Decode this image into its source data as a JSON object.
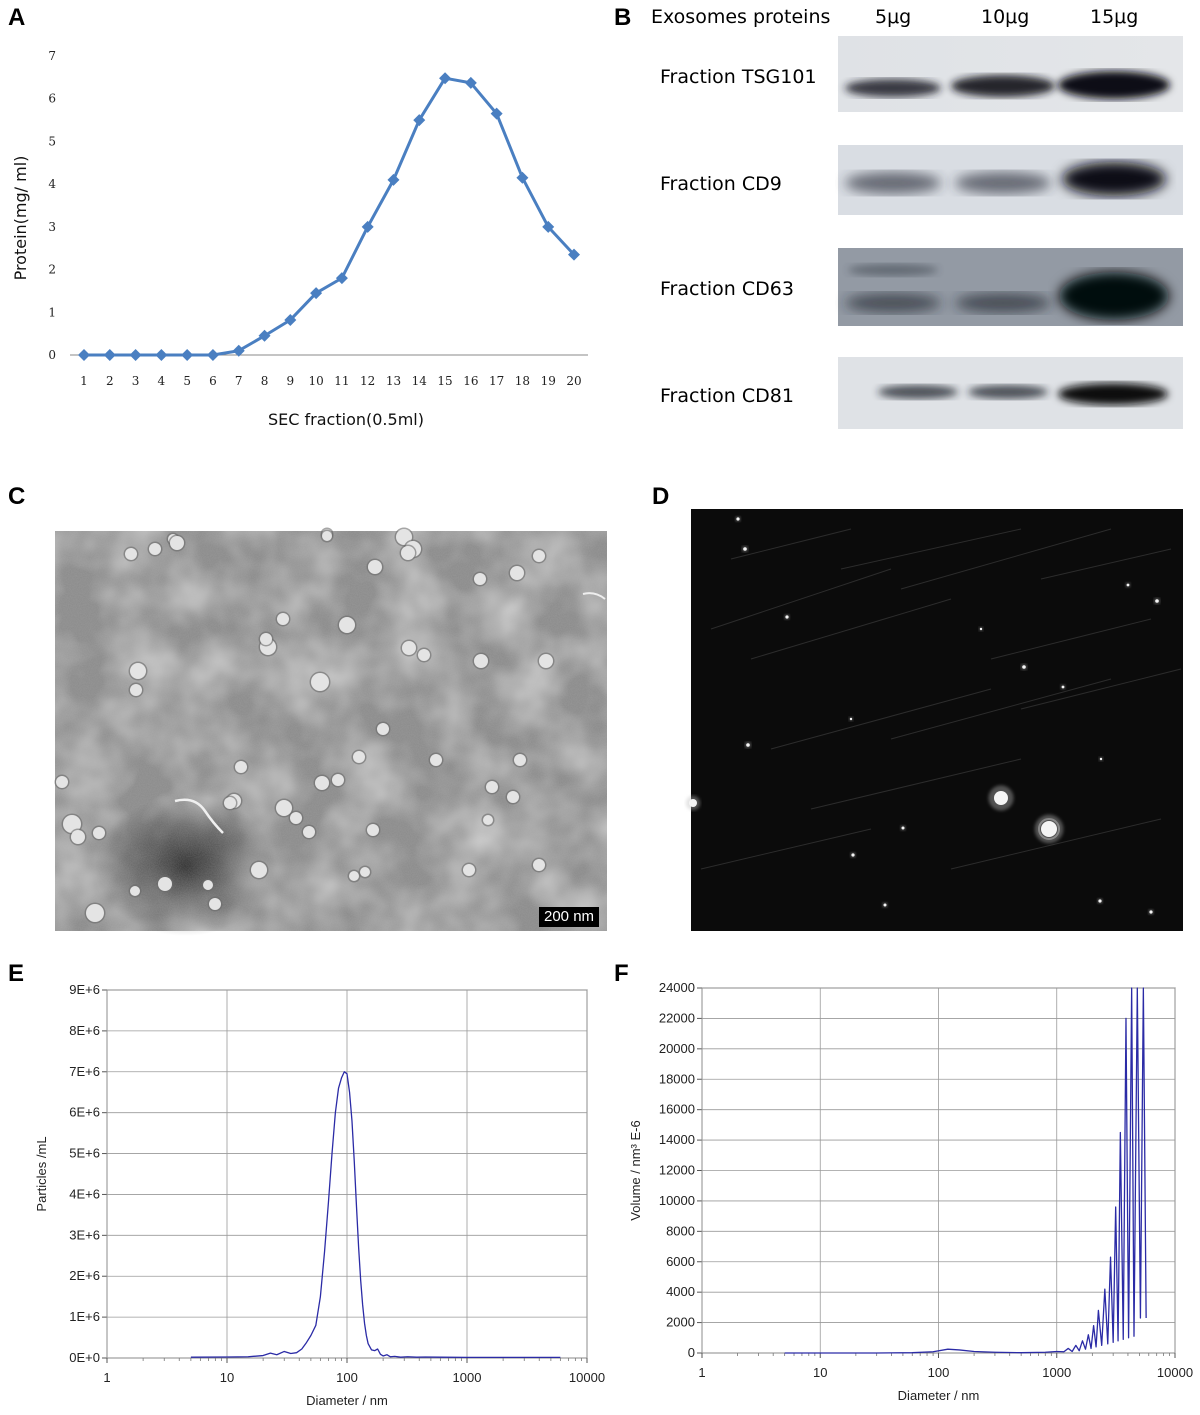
{
  "panels": {
    "A": "A",
    "B": "B",
    "C": "C",
    "D": "D",
    "E": "E",
    "F": "F"
  },
  "western_blot": {
    "header": "Exosomes proteins",
    "lanes": [
      "5μg",
      "10μg",
      "15μg"
    ],
    "rows": [
      {
        "label": "Fraction TSG101",
        "band_intensity": [
          0.75,
          0.9,
          1.0
        ]
      },
      {
        "label": "Fraction CD9",
        "band_intensity": [
          0.55,
          0.55,
          1.0
        ]
      },
      {
        "label": "Fraction CD63",
        "band_intensity": [
          0.5,
          0.55,
          1.0
        ]
      },
      {
        "label": "Fraction CD81",
        "band_intensity": [
          0.6,
          0.6,
          1.0
        ]
      }
    ]
  },
  "tem": {
    "scale_bar": "200 nm"
  },
  "colors": {
    "line_a": "#4a7fc1",
    "line_ef": "#2b2ba6",
    "grid": "#9a9a9a"
  },
  "chart_data": [
    {
      "id": "A",
      "type": "line",
      "xlabel": "SEC fraction(0.5ml)",
      "ylabel": "Protein(mg/ ml)",
      "x": [
        1,
        2,
        3,
        4,
        5,
        6,
        7,
        8,
        9,
        10,
        11,
        12,
        13,
        14,
        15,
        16,
        17,
        18,
        19,
        20
      ],
      "y": [
        0,
        0,
        0,
        0,
        0,
        0,
        0.1,
        0.45,
        0.82,
        1.45,
        1.8,
        3.0,
        4.1,
        5.5,
        6.48,
        6.37,
        5.65,
        4.15,
        3.0,
        2.35
      ],
      "xticks": [
        "1",
        "2",
        "3",
        "4",
        "5",
        "6",
        "7",
        "8",
        "9",
        "10",
        "11",
        "12",
        "13",
        "14",
        "15",
        "16",
        "17",
        "18",
        "19",
        "20"
      ],
      "yticks": [
        "0",
        "1",
        "2",
        "3",
        "4",
        "5",
        "6",
        "7"
      ],
      "ylim": [
        0,
        7
      ],
      "marker": "diamond",
      "grid": false
    },
    {
      "id": "E",
      "type": "line",
      "xlabel": "Diameter / nm",
      "ylabel": "Particles /mL",
      "xscale": "log",
      "xlim": [
        1,
        10000
      ],
      "ylim": [
        0,
        9000000
      ],
      "xticks": [
        "1",
        "10",
        "100",
        "1000",
        "10000"
      ],
      "yticks": [
        "0E+0",
        "1E+6",
        "2E+6",
        "3E+6",
        "4E+6",
        "5E+6",
        "6E+6",
        "7E+6",
        "8E+6",
        "9E+6"
      ],
      "x": [
        5,
        10,
        15,
        20,
        23,
        26,
        30,
        34,
        38,
        42,
        46,
        50,
        55,
        60,
        65,
        70,
        75,
        80,
        85,
        90,
        95,
        100,
        105,
        110,
        115,
        120,
        125,
        130,
        135,
        140,
        145,
        150,
        160,
        170,
        180,
        190,
        200,
        215,
        230,
        250,
        280,
        320,
        380,
        450,
        600,
        1000,
        2000,
        4000,
        6000
      ],
      "y": [
        20000,
        25000,
        30000,
        60000,
        120000,
        80000,
        160000,
        110000,
        130000,
        220000,
        380000,
        550000,
        800000,
        1500000,
        2600000,
        3800000,
        5000000,
        6000000,
        6600000,
        6850000,
        7000000,
        6950000,
        6500000,
        5800000,
        4800000,
        3700000,
        2700000,
        1900000,
        1300000,
        850000,
        550000,
        350000,
        200000,
        180000,
        220000,
        90000,
        50000,
        80000,
        30000,
        40000,
        20000,
        30000,
        20000,
        25000,
        20000,
        15000,
        15000,
        15000,
        15000
      ],
      "grid": true
    },
    {
      "id": "F",
      "type": "line",
      "xlabel": "Diameter / nm",
      "ylabel": "Volume / nm³ E-6",
      "xscale": "log",
      "xlim": [
        1,
        10000
      ],
      "ylim": [
        0,
        24000
      ],
      "xticks": [
        "1",
        "10",
        "100",
        "1000",
        "10000"
      ],
      "yticks": [
        "0",
        "2000",
        "4000",
        "6000",
        "8000",
        "10000",
        "12000",
        "14000",
        "16000",
        "18000",
        "20000",
        "22000",
        "24000"
      ],
      "x": [
        5,
        10,
        30,
        60,
        90,
        120,
        150,
        200,
        300,
        500,
        800,
        1000,
        1150,
        1250,
        1350,
        1450,
        1550,
        1650,
        1750,
        1850,
        1950,
        2050,
        2150,
        2250,
        2400,
        2550,
        2700,
        2850,
        3000,
        3150,
        3300,
        3450,
        3650,
        3850,
        4050,
        4300,
        4500,
        4800,
        5100,
        5400,
        5700
      ],
      "y": [
        0,
        0,
        0,
        20,
        80,
        250,
        200,
        100,
        50,
        20,
        50,
        100,
        80,
        300,
        100,
        500,
        150,
        800,
        250,
        1200,
        300,
        1800,
        400,
        2800,
        500,
        4200,
        600,
        6300,
        700,
        9600,
        800,
        14500,
        900,
        22000,
        1000,
        24000,
        1100,
        24000,
        2300,
        24000,
        2300
      ],
      "grid": true
    }
  ]
}
